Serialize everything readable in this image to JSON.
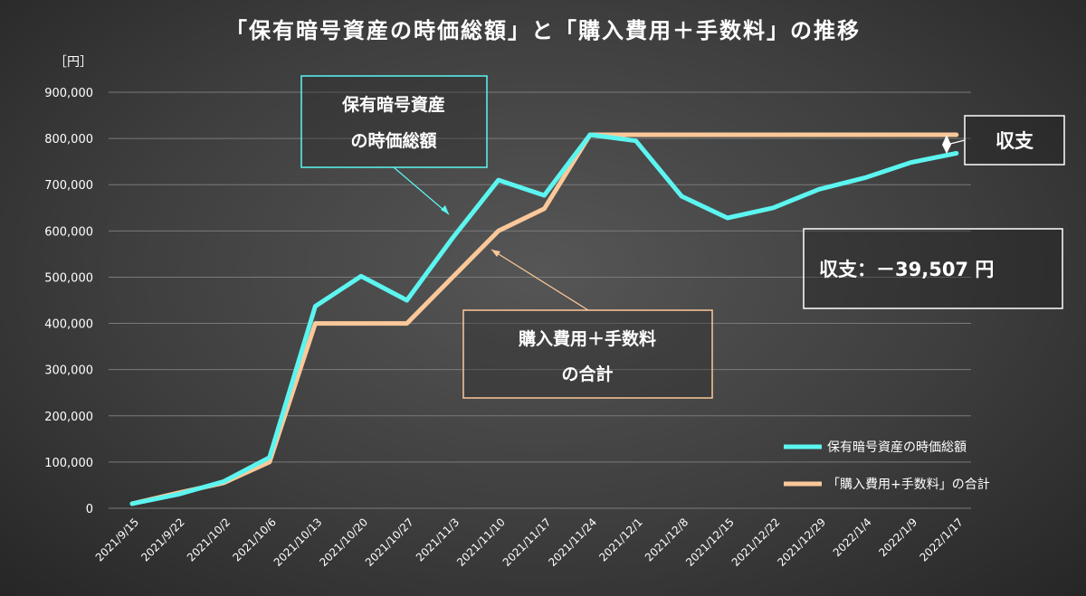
{
  "chart_data": {
    "type": "line",
    "title": "「保有暗号資産の時価総額」と「購入費用＋手数料」の推移",
    "ylabel": "［円］",
    "xlabel": "",
    "ylim": [
      0,
      900000
    ],
    "yticks": [
      0,
      100000,
      200000,
      300000,
      400000,
      500000,
      600000,
      700000,
      800000,
      900000
    ],
    "ytick_labels": [
      "0",
      "100,000",
      "200,000",
      "300,000",
      "400,000",
      "500,000",
      "600,000",
      "700,000",
      "800,000",
      "900,000"
    ],
    "grid": "horizontal",
    "categories": [
      "2021/9/15",
      "2021/9/22",
      "2021/10/2",
      "2021/10/6",
      "2021/10/13",
      "2021/10/20",
      "2021/10/27",
      "2021/11/3",
      "2021/11/10",
      "2021/11/17",
      "2021/11/24",
      "2021/12/1",
      "2021/12/8",
      "2021/12/15",
      "2021/12/22",
      "2021/12/29",
      "2022/1/4",
      "2022/1/9",
      "2022/1/17"
    ],
    "series": [
      {
        "name": "保有暗号資産の時価総額",
        "color": "#5cf5f0",
        "values": [
          10000,
          30000,
          58000,
          110000,
          437000,
          502000,
          450000,
          585000,
          710000,
          677000,
          808000,
          795000,
          675000,
          628000,
          650000,
          690000,
          715000,
          748000,
          768000
        ]
      },
      {
        "name": "「購入費用+手数料」の合計",
        "color": "#fcc899",
        "values": [
          10000,
          33000,
          55000,
          100000,
          400000,
          400000,
          400000,
          500000,
          600000,
          648000,
          808000,
          808000,
          808000,
          808000,
          808000,
          808000,
          808000,
          808000,
          808000
        ]
      }
    ],
    "legend_position": "bottom-right",
    "annotations": {
      "market_value_box": [
        "保有暗号資産",
        "の時価総額"
      ],
      "cost_box": [
        "購入費用＋手数料",
        "の合計"
      ],
      "balance_label": "収支",
      "balance_result": "収支：－39,507 円"
    }
  }
}
